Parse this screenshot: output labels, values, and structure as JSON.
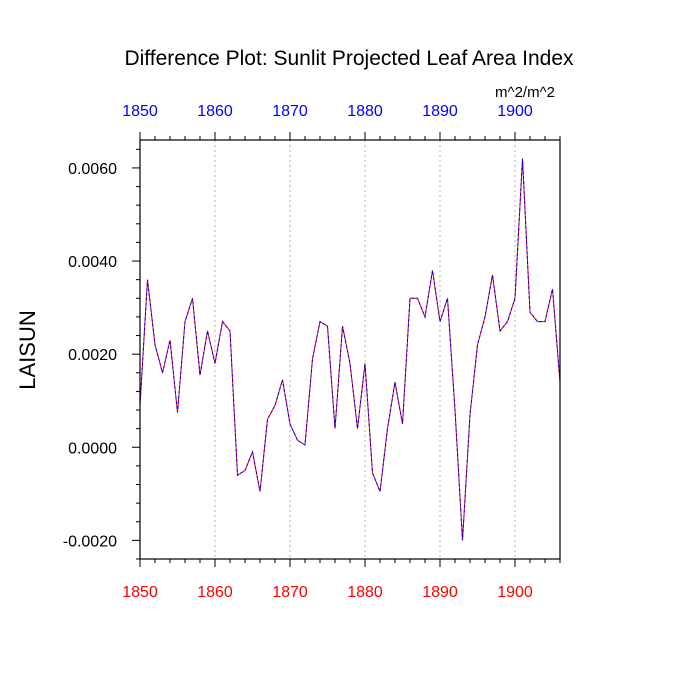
{
  "chart_data": {
    "type": "line",
    "title": "Difference Plot: Sunlit Projected Leaf Area Index",
    "units": "m^2/m^2",
    "ylabel": "LAISUN",
    "xlabel": "",
    "xlim": [
      1850,
      1906
    ],
    "ylim": [
      -0.0024,
      0.0066
    ],
    "x_ticks": [
      1850,
      1860,
      1870,
      1880,
      1890,
      1900
    ],
    "y_ticks": [
      -0.002,
      0.0,
      0.002,
      0.004,
      0.006
    ],
    "y_tick_labels": [
      "-0.0020",
      "0.0000",
      "0.0020",
      "0.0040",
      "0.0060"
    ],
    "x_tick_labels": [
      "1850",
      "1860",
      "1870",
      "1880",
      "1890",
      "1900"
    ],
    "top_axis_color": "#0000ff",
    "bottom_axis_color": "#ff0000",
    "line_colors": [
      "#ff0000",
      "#0000ff"
    ],
    "grid": "vertical dotted at major x ticks",
    "series": [
      {
        "x": [
          1850,
          1851,
          1852,
          1853,
          1854,
          1855,
          1856,
          1857,
          1858,
          1859,
          1860,
          1861,
          1862,
          1863,
          1864,
          1865,
          1866,
          1867,
          1868,
          1869,
          1870,
          1871,
          1872,
          1873,
          1874,
          1875,
          1876,
          1877,
          1878,
          1879,
          1880,
          1881,
          1882,
          1883,
          1884,
          1885,
          1886,
          1887,
          1888,
          1889,
          1890,
          1891,
          1892,
          1893,
          1894,
          1895,
          1896,
          1897,
          1898,
          1899,
          1900,
          1901,
          1902,
          1903,
          1904,
          1905,
          1906
        ],
        "values": [
          0.0009,
          0.0036,
          0.0022,
          0.0016,
          0.0023,
          0.00075,
          0.0027,
          0.0032,
          0.00155,
          0.0025,
          0.0018,
          0.0027,
          0.0025,
          -0.0006,
          -0.0005,
          -0.0001,
          -0.00095,
          0.0006,
          0.0009,
          0.00145,
          0.0005,
          0.00015,
          5e-05,
          0.0019,
          0.0027,
          0.0026,
          0.0004,
          0.0026,
          0.0018,
          0.0004,
          0.0018,
          -0.00055,
          -0.00095,
          0.0004,
          0.0014,
          0.0005,
          0.0032,
          0.0032,
          0.0028,
          0.0038,
          0.0027,
          0.0032,
          0.0008,
          -0.002,
          0.0007,
          0.0022,
          0.0028,
          0.0037,
          0.0025,
          0.0027,
          0.0032,
          0.0062,
          0.0029,
          0.0027,
          0.0027,
          0.0034,
          0.0014
        ]
      }
    ]
  }
}
